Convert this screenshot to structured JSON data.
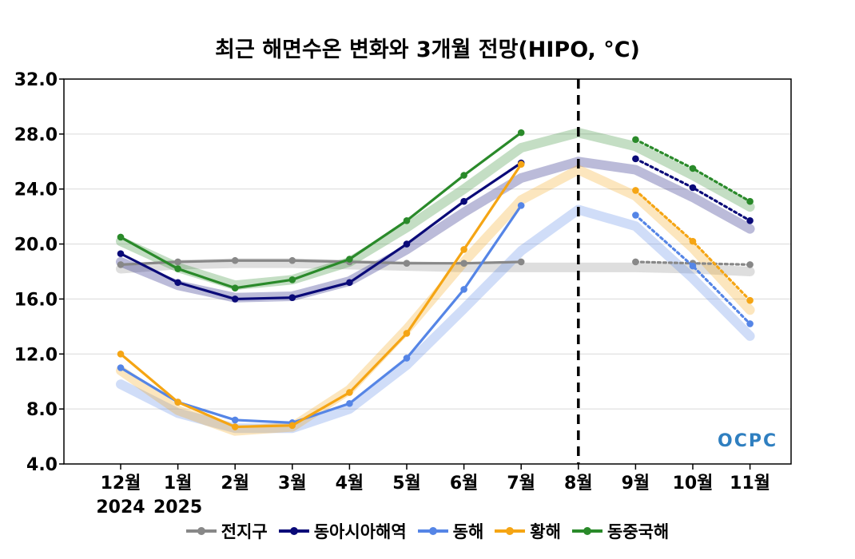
{
  "chart_data": {
    "type": "line",
    "title": "최근 해면수온 변화와 3개월 전망(HIPO, °C)",
    "ylim": [
      4.0,
      32.0
    ],
    "yticks": [
      "4.0",
      "8.0",
      "12.0",
      "16.0",
      "20.0",
      "24.0",
      "28.0",
      "32.0"
    ],
    "categories": [
      "12월",
      "1월",
      "2월",
      "3월",
      "4월",
      "5월",
      "6월",
      "7월",
      "8월",
      "9월",
      "10월",
      "11월"
    ],
    "year_labels": [
      {
        "category": "12월",
        "text": "2024"
      },
      {
        "category": "1월",
        "text": "2025"
      }
    ],
    "forecast_divider": "8월",
    "logo_text": "OCPC",
    "series": [
      {
        "name": "전지구",
        "color": "#888888",
        "observed": [
          18.5,
          18.7,
          18.8,
          18.8,
          18.7,
          18.6,
          18.6,
          18.7,
          null,
          null,
          null,
          null
        ],
        "forecast": [
          null,
          null,
          null,
          null,
          null,
          null,
          null,
          null,
          null,
          18.7,
          18.6,
          18.5
        ],
        "climatology": [
          18.2,
          18.5,
          18.6,
          18.6,
          18.5,
          18.4,
          18.3,
          18.3,
          18.3,
          18.3,
          18.2,
          18.0
        ]
      },
      {
        "name": "동아시아해역",
        "color": "#0a0a78",
        "observed": [
          19.3,
          17.2,
          16.0,
          16.1,
          17.2,
          20.0,
          23.1,
          25.9,
          null,
          null,
          null,
          null
        ],
        "forecast": [
          null,
          null,
          null,
          null,
          null,
          null,
          null,
          null,
          null,
          26.2,
          24.1,
          21.7
        ],
        "climatology": [
          18.7,
          17.0,
          16.1,
          16.2,
          17.3,
          19.6,
          22.3,
          24.8,
          26.0,
          25.4,
          23.4,
          21.1
        ]
      },
      {
        "name": "동해",
        "color": "#5585e6",
        "observed": [
          11.0,
          8.5,
          7.2,
          7.0,
          8.4,
          11.7,
          16.7,
          22.8,
          null,
          null,
          null,
          null
        ],
        "forecast": [
          null,
          null,
          null,
          null,
          null,
          null,
          null,
          null,
          null,
          22.1,
          18.4,
          14.2
        ],
        "climatology": [
          9.8,
          7.7,
          6.6,
          6.6,
          8.0,
          11.2,
          15.3,
          19.5,
          22.5,
          21.3,
          17.5,
          13.3
        ]
      },
      {
        "name": "황해",
        "color": "#f5a514",
        "observed": [
          12.0,
          8.5,
          6.7,
          6.8,
          9.2,
          13.5,
          19.6,
          25.8,
          null,
          null,
          null,
          null
        ],
        "forecast": [
          null,
          null,
          null,
          null,
          null,
          null,
          null,
          null,
          null,
          23.9,
          20.2,
          15.9
        ],
        "climatology": [
          10.8,
          7.9,
          6.4,
          6.7,
          9.4,
          13.8,
          18.7,
          23.2,
          25.4,
          23.5,
          19.7,
          15.2
        ]
      },
      {
        "name": "동중국해",
        "color": "#2a8a2a",
        "observed": [
          20.5,
          18.2,
          16.8,
          17.4,
          18.9,
          21.7,
          25.0,
          28.1,
          null,
          null,
          null,
          null
        ],
        "forecast": [
          null,
          null,
          null,
          null,
          null,
          null,
          null,
          null,
          null,
          27.6,
          25.5,
          23.1
        ],
        "climatology": [
          20.2,
          18.3,
          17.0,
          17.4,
          18.7,
          21.2,
          24.0,
          27.0,
          28.1,
          27.1,
          25.0,
          22.7
        ]
      }
    ]
  }
}
